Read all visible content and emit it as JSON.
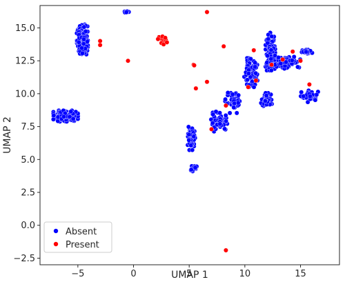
{
  "chart_data": {
    "type": "scatter",
    "title": "",
    "xlabel": "UMAP 1",
    "ylabel": "UMAP 2",
    "xlim": [
      -8.4,
      18.5
    ],
    "ylim": [
      -3.0,
      16.7
    ],
    "x_ticks": [
      -5,
      0,
      5,
      10,
      15
    ],
    "y_ticks": [
      -2.5,
      0.0,
      2.5,
      5.0,
      7.5,
      10.0,
      12.5,
      15.0
    ],
    "x_tick_labels": [
      "−5",
      "0",
      "5",
      "10",
      "15"
    ],
    "y_tick_labels": [
      "−2.5",
      "0.0",
      "2.5",
      "5.0",
      "7.5",
      "10.0",
      "12.5",
      "15.0"
    ],
    "grid": false,
    "legend_position": "bottom-left",
    "series": [
      {
        "name": "Absent",
        "color": "#0000ff",
        "clusters": [
          {
            "center": [
              -4.6,
              14.1
            ],
            "spread": [
              0.45,
              1.05
            ],
            "n": 230
          },
          {
            "center": [
              -6.1,
              8.3
            ],
            "spread": [
              1.0,
              0.38
            ],
            "n": 220
          },
          {
            "center": [
              -0.7,
              16.2
            ],
            "spread": [
              0.25,
              0.08
            ],
            "n": 10
          },
          {
            "center": [
              5.4,
              4.3
            ],
            "spread": [
              0.35,
              0.18
            ],
            "n": 30
          },
          {
            "center": [
              5.2,
              6.6
            ],
            "spread": [
              0.3,
              0.8
            ],
            "n": 50
          },
          {
            "center": [
              7.7,
              7.9
            ],
            "spread": [
              0.8,
              0.7
            ],
            "n": 50
          },
          {
            "center": [
              9.0,
              9.3
            ],
            "spread": [
              0.7,
              0.7
            ],
            "n": 40
          },
          {
            "center": [
              10.5,
              11.6
            ],
            "spread": [
              0.6,
              1.0
            ],
            "n": 90
          },
          {
            "center": [
              12.3,
              13.2
            ],
            "spread": [
              0.4,
              1.3
            ],
            "n": 100
          },
          {
            "center": [
              13.5,
              12.4
            ],
            "spread": [
              1.4,
              0.45
            ],
            "n": 120
          },
          {
            "center": [
              12.0,
              9.5
            ],
            "spread": [
              0.5,
              0.5
            ],
            "n": 50
          },
          {
            "center": [
              15.8,
              9.8
            ],
            "spread": [
              0.7,
              0.4
            ],
            "n": 40
          },
          {
            "center": [
              15.5,
              13.2
            ],
            "spread": [
              0.5,
              0.2
            ],
            "n": 30
          }
        ]
      },
      {
        "name": "Present",
        "color": "#ff0000",
        "points": [
          [
            2.6,
            14.05
          ],
          [
            2.4,
            14.2
          ],
          [
            2.8,
            13.9
          ],
          [
            2.5,
            13.85
          ],
          [
            2.9,
            14.1
          ],
          [
            2.3,
            14.3
          ],
          [
            2.7,
            13.75
          ],
          [
            3.0,
            13.9
          ],
          [
            2.6,
            14.35
          ],
          [
            2.2,
            14.15
          ],
          [
            2.85,
            14.25
          ],
          [
            -3.0,
            14.0
          ],
          [
            -3.0,
            13.7
          ],
          [
            -0.5,
            12.5
          ],
          [
            6.6,
            16.2
          ],
          [
            5.4,
            12.2
          ],
          [
            5.45,
            12.15
          ],
          [
            5.6,
            10.4
          ],
          [
            6.6,
            10.9
          ],
          [
            8.1,
            13.6
          ],
          [
            10.8,
            13.3
          ],
          [
            10.3,
            10.5
          ],
          [
            11.0,
            11.0
          ],
          [
            12.4,
            12.2
          ],
          [
            13.4,
            12.6
          ],
          [
            14.3,
            13.2
          ],
          [
            15.0,
            12.5
          ],
          [
            15.8,
            10.7
          ],
          [
            7.0,
            7.3
          ],
          [
            8.3,
            9.1
          ],
          [
            8.3,
            -1.9
          ]
        ]
      }
    ]
  }
}
